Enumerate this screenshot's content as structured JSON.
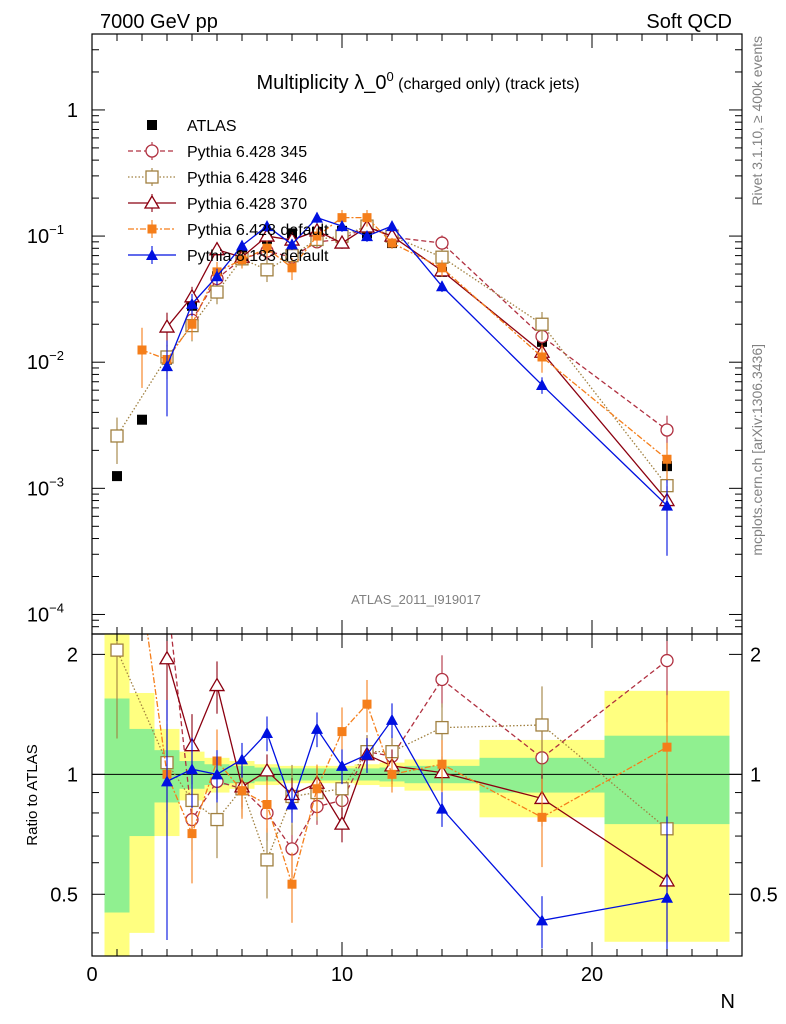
{
  "header": {
    "left": "7000 GeV pp",
    "right": "Soft QCD"
  },
  "side_labels": {
    "top": "Rivet 3.1.10, ≥ 400k events",
    "bottom": "mcplots.cern.ch [arXiv:1306.3436]"
  },
  "chart_data": {
    "type": "line",
    "title": "Multiplicity λ_0",
    "title_sup": "0",
    "title_suffix": " (charged only) (track jets)",
    "analysis_id": "ATLAS_2011_I919017",
    "xlabel": "N",
    "ylabel": "",
    "ratio_ylabel": "Ratio to ATLAS",
    "xlim": [
      0,
      26
    ],
    "ylim_log": [
      7e-05,
      4
    ],
    "ratio_ylim": [
      0.35,
      2.25
    ],
    "x_ticks": [
      0,
      10,
      20
    ],
    "y_ticks_main": [
      {
        "v": 1,
        "base": "1",
        "exp": ""
      },
      {
        "v": 0.1,
        "base": "10",
        "exp": "−1"
      },
      {
        "v": 0.01,
        "base": "10",
        "exp": "−2"
      },
      {
        "v": 0.001,
        "base": "10",
        "exp": "−3"
      },
      {
        "v": 0.0001,
        "base": "10",
        "exp": "−4"
      }
    ],
    "y_ticks_ratio": [
      {
        "v": 2,
        "label": "2"
      },
      {
        "v": 1,
        "label": "1"
      },
      {
        "v": 0.5,
        "label": "0.5"
      }
    ],
    "data": {
      "name": "ATLAS",
      "x": [
        1,
        2,
        3,
        4,
        5,
        6,
        7,
        8,
        9,
        10,
        11,
        12,
        14,
        18,
        23
      ],
      "y": [
        0.00125,
        0.0035,
        0.0105,
        0.028,
        0.048,
        0.072,
        0.095,
        0.105,
        0.108,
        0.11,
        0.105,
        0.088,
        0.052,
        0.0145,
        0.0015
      ],
      "band_edges": [
        0.5,
        1.5,
        2.5,
        3.5,
        4.5,
        5.5,
        6.5,
        7.5,
        8.5,
        9.5,
        10.5,
        11.5,
        12.5,
        15.5,
        20.5,
        25.5
      ],
      "band_stat": [
        0.55,
        0.3,
        0.15,
        0.08,
        0.06,
        0.05,
        0.04,
        0.035,
        0.035,
        0.035,
        0.035,
        0.04,
        0.05,
        0.1,
        0.25
      ],
      "band_tot": [
        1.35,
        0.6,
        0.3,
        0.14,
        0.1,
        0.08,
        0.06,
        0.05,
        0.05,
        0.05,
        0.06,
        0.07,
        0.09,
        0.22,
        0.62
      ]
    },
    "series": [
      {
        "name": "Pythia 6.428 345",
        "color": "#b03040",
        "dash": "5,3",
        "marker": "circle-open",
        "x": [
          1,
          2,
          3,
          4,
          5,
          6,
          7,
          8,
          9,
          10,
          11,
          12,
          14,
          18,
          23
        ],
        "y": [
          null,
          null,
          null,
          0.0215,
          0.046,
          0.066,
          0.076,
          0.068,
          0.09,
          0.094,
          0.12,
          0.098,
          0.088,
          0.016,
          0.0029
        ],
        "ratio": [
          null,
          null,
          7.5,
          0.77,
          0.96,
          0.92,
          0.8,
          0.65,
          0.83,
          0.86,
          1.14,
          1.11,
          1.73,
          1.1,
          1.93
        ],
        "err": [
          null,
          null,
          0.5,
          0.1,
          0.1,
          0.1,
          0.15,
          0.15,
          0.1,
          0.1,
          0.1,
          0.1,
          0.15,
          0.2,
          0.3
        ]
      },
      {
        "name": "Pythia 6.428 346",
        "color": "#a08040",
        "dash": "1.5,2",
        "marker": "square-open",
        "x": [
          1,
          2,
          3,
          4,
          5,
          6,
          7,
          8,
          9,
          10,
          11,
          12,
          14,
          18,
          23
        ],
        "y": [
          0.0026,
          null,
          0.011,
          0.0195,
          0.036,
          0.066,
          0.054,
          0.07,
          0.094,
          0.1,
          0.12,
          0.1,
          0.068,
          0.02,
          0.00105
        ],
        "ratio": [
          2.05,
          null,
          1.07,
          0.86,
          0.77,
          0.92,
          0.61,
          0.88,
          0.9,
          0.92,
          1.14,
          1.14,
          1.31,
          1.33,
          0.73
        ],
        "err": [
          0.4,
          null,
          0.25,
          0.25,
          0.2,
          0.15,
          0.2,
          0.2,
          0.15,
          0.15,
          0.1,
          0.1,
          0.15,
          0.25,
          0.3
        ]
      },
      {
        "name": "Pythia 6.428 370",
        "color": "#8b0010",
        "dash": "",
        "marker": "triangle-open",
        "x": [
          3,
          4,
          5,
          6,
          7,
          8,
          9,
          10,
          11,
          12,
          14,
          18,
          23
        ],
        "y": [
          0.019,
          0.033,
          0.078,
          0.068,
          0.1,
          0.093,
          0.11,
          0.088,
          0.118,
          0.1,
          0.053,
          0.012,
          0.0008
        ],
        "ratio": [
          1.95,
          1.18,
          1.67,
          0.93,
          1.02,
          0.89,
          0.95,
          0.75,
          1.12,
          1.05,
          1.01,
          0.87,
          0.54
        ],
        "err": [
          0.3,
          0.2,
          0.15,
          0.12,
          0.1,
          0.1,
          0.1,
          0.1,
          0.1,
          0.1,
          0.1,
          0.15,
          0.3
        ]
      },
      {
        "name": "Pythia 6.428 default",
        "color": "#f57e1a",
        "dash": "6,2,2,2",
        "marker": "square-filled",
        "x": [
          2,
          3,
          4,
          5,
          6,
          7,
          8,
          9,
          10,
          11,
          12,
          14,
          18,
          23
        ],
        "y": [
          0.0125,
          0.0105,
          0.02,
          0.052,
          0.065,
          0.08,
          0.056,
          0.1,
          0.14,
          0.14,
          0.088,
          0.056,
          0.011,
          0.0017
        ],
        "ratio": [
          3.6,
          1.0,
          0.71,
          1.08,
          0.91,
          0.84,
          0.53,
          0.92,
          1.28,
          1.5,
          1.0,
          1.06,
          0.78,
          1.17
        ],
        "err": [
          0.5,
          0.3,
          0.25,
          0.2,
          0.15,
          0.15,
          0.2,
          0.15,
          0.15,
          0.15,
          0.1,
          0.15,
          0.25,
          0.35
        ]
      },
      {
        "name": "Pythia 8.183 default",
        "color": "#0010e0",
        "dash": "",
        "marker": "triangle-filled",
        "x": [
          3,
          4,
          5,
          6,
          7,
          8,
          9,
          10,
          11,
          12,
          14,
          18,
          23
        ],
        "y": [
          0.0093,
          0.029,
          0.048,
          0.084,
          0.12,
          0.086,
          0.14,
          0.12,
          0.1,
          0.12,
          0.04,
          0.0066,
          0.00073
        ],
        "ratio": [
          0.96,
          1.03,
          1.0,
          1.09,
          1.27,
          0.84,
          1.3,
          1.05,
          1.12,
          1.37,
          0.82,
          0.43,
          0.49
        ],
        "err": [
          0.6,
          0.2,
          0.15,
          0.1,
          0.1,
          0.1,
          0.1,
          0.1,
          0.1,
          0.1,
          0.1,
          0.15,
          0.6
        ]
      }
    ]
  }
}
